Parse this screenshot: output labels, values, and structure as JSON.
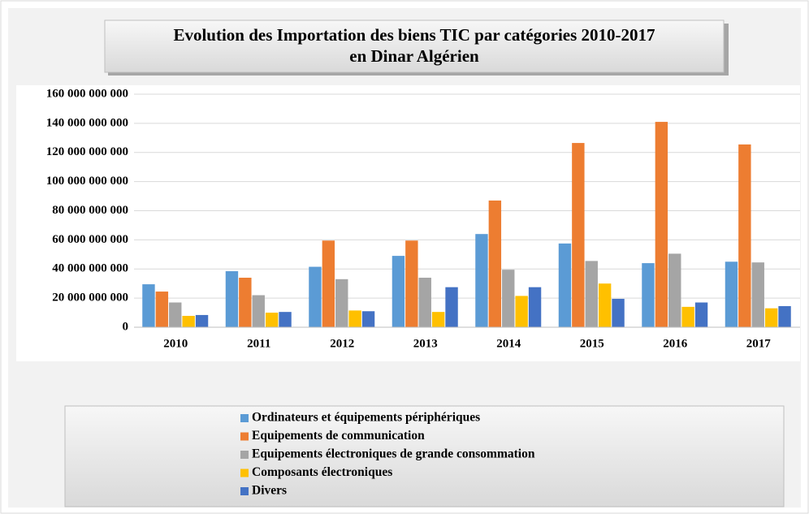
{
  "chart_data": {
    "type": "bar",
    "title": [
      "Evolution des Importation des biens TIC par catégories 2010-2017",
      "en Dinar Algérien"
    ],
    "categories": [
      "2010",
      "2011",
      "2012",
      "2013",
      "2014",
      "2015",
      "2016",
      "2017"
    ],
    "series": [
      {
        "name": "Ordinateurs et équipements périphériques",
        "color": "#5b9bd5",
        "values": [
          29500000000,
          38500000000,
          41500000000,
          49000000000,
          64000000000,
          57500000000,
          44000000000,
          45000000000
        ]
      },
      {
        "name": "Equipements de communication",
        "color": "#ed7d31",
        "values": [
          24500000000,
          34000000000,
          59500000000,
          59500000000,
          87000000000,
          126500000000,
          141000000000,
          125500000000
        ]
      },
      {
        "name": "Equipements électroniques de grande consommation",
        "color": "#a5a5a5",
        "values": [
          17000000000,
          22000000000,
          33000000000,
          34000000000,
          39500000000,
          45500000000,
          50500000000,
          44500000000
        ]
      },
      {
        "name": "Composants électroniques",
        "color": "#ffc000",
        "values": [
          7800000000,
          10000000000,
          11500000000,
          10500000000,
          21500000000,
          30000000000,
          14000000000,
          13000000000
        ]
      },
      {
        "name": "Divers",
        "color": "#4472c4",
        "values": [
          8400000000,
          10500000000,
          11000000000,
          27500000000,
          27500000000,
          19500000000,
          17000000000,
          14500000000
        ]
      }
    ],
    "ylim": [
      0,
      160000000000
    ],
    "yticks": [
      {
        "value": 0,
        "label": "0"
      },
      {
        "value": 20000000000,
        "label": "20 000 000 000"
      },
      {
        "value": 40000000000,
        "label": "40 000 000 000"
      },
      {
        "value": 60000000000,
        "label": "60 000 000 000"
      },
      {
        "value": 80000000000,
        "label": "80 000 000 000"
      },
      {
        "value": 100000000000,
        "label": "100 000 000 000"
      },
      {
        "value": 120000000000,
        "label": "120 000 000 000"
      },
      {
        "value": 140000000000,
        "label": "140 000 000 000"
      },
      {
        "value": 160000000000,
        "label": "160 000 000 000"
      }
    ],
    "grid": true,
    "legend": "bottom"
  }
}
